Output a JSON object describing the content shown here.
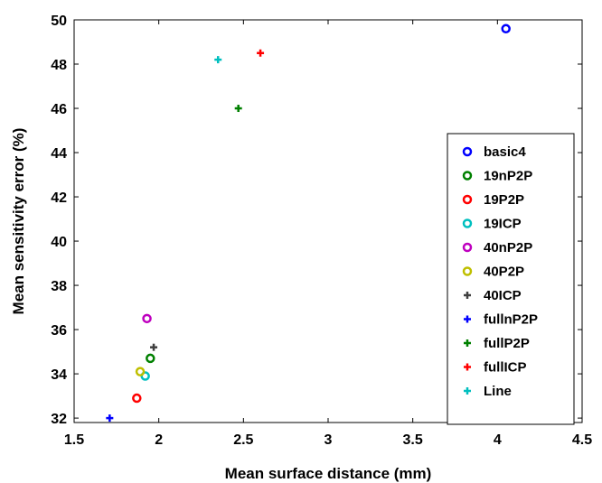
{
  "chart_data": {
    "type": "scatter",
    "xlabel": "Mean surface distance (mm)",
    "ylabel": "Mean sensitivity error (%)",
    "xlim": [
      1.5,
      4.5
    ],
    "ylim": [
      31.8,
      50
    ],
    "xticks": [
      "1.5",
      "2",
      "2.5",
      "3",
      "3.5",
      "4",
      "4.5"
    ],
    "yticks": [
      "32",
      "34",
      "36",
      "38",
      "40",
      "42",
      "44",
      "46",
      "48",
      "50"
    ],
    "xtick_values": [
      1.5,
      2,
      2.5,
      3,
      3.5,
      4,
      4.5
    ],
    "ytick_values": [
      32,
      34,
      36,
      38,
      40,
      42,
      44,
      46,
      48,
      50
    ],
    "grid": false,
    "legend_position": "right",
    "series": [
      {
        "name": "basic4",
        "marker": "circle",
        "color": "#0000ff",
        "x": [
          4.05
        ],
        "y": [
          49.6
        ]
      },
      {
        "name": "19nP2P",
        "marker": "circle",
        "color": "#008000",
        "x": [
          1.95
        ],
        "y": [
          34.7
        ]
      },
      {
        "name": "19P2P",
        "marker": "circle",
        "color": "#ff0000",
        "x": [
          1.87
        ],
        "y": [
          32.9
        ]
      },
      {
        "name": "19ICP",
        "marker": "circle",
        "color": "#00bfbf",
        "x": [
          1.92
        ],
        "y": [
          33.9
        ]
      },
      {
        "name": "40nP2P",
        "marker": "circle",
        "color": "#bf00bf",
        "x": [
          1.93
        ],
        "y": [
          36.5
        ]
      },
      {
        "name": "40P2P",
        "marker": "circle",
        "color": "#bfbf00",
        "x": [
          1.89
        ],
        "y": [
          34.1
        ]
      },
      {
        "name": "40ICP",
        "marker": "plus",
        "color": "#404040",
        "x": [
          1.97
        ],
        "y": [
          35.2
        ]
      },
      {
        "name": "fullnP2P",
        "marker": "plus",
        "color": "#0000ff",
        "x": [
          1.71
        ],
        "y": [
          32.0
        ]
      },
      {
        "name": "fullP2P",
        "marker": "plus",
        "color": "#008000",
        "x": [
          2.47
        ],
        "y": [
          46.0
        ]
      },
      {
        "name": "fullICP",
        "marker": "plus",
        "color": "#ff0000",
        "x": [
          2.6
        ],
        "y": [
          48.5
        ]
      },
      {
        "name": "Line",
        "marker": "plus",
        "color": "#00bfbf",
        "x": [
          2.35
        ],
        "y": [
          48.2
        ]
      }
    ]
  }
}
